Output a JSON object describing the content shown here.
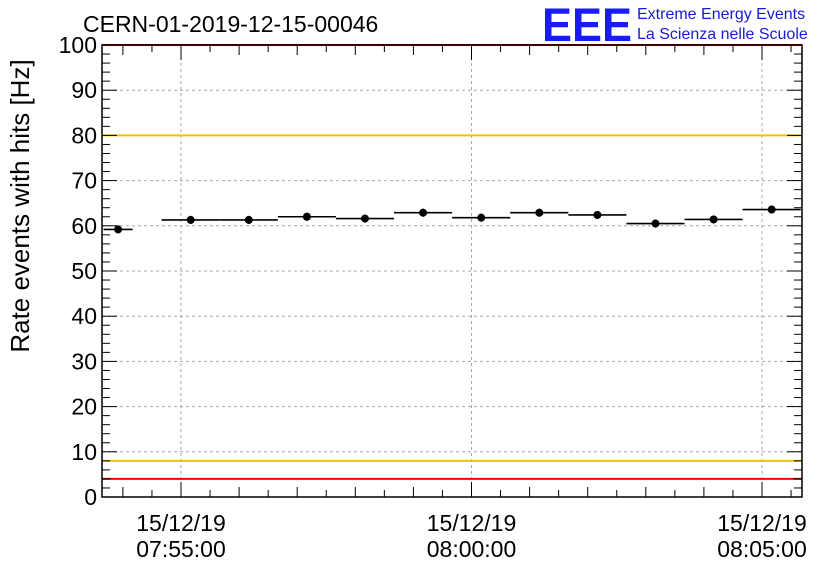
{
  "chart_data": {
    "type": "scatter",
    "title": "CERN-01-2019-12-15-00046",
    "ylabel": "Rate events with hits [Hz]",
    "xlabel": "",
    "ylim": [
      0,
      100
    ],
    "yticks": [
      "0",
      "10",
      "20",
      "30",
      "40",
      "50",
      "60",
      "70",
      "80",
      "90",
      "100"
    ],
    "xticks": [
      {
        "date": "15/12/19",
        "time": "07:55:00"
      },
      {
        "date": "15/12/19",
        "time": "08:00:00"
      },
      {
        "date": "15/12/19",
        "time": "08:05:00"
      }
    ],
    "grid": true,
    "reference_lines": [
      {
        "y": 100,
        "color": "#ff0000"
      },
      {
        "y": 80,
        "color": "#f2c200"
      },
      {
        "y": 8,
        "color": "#f2c200"
      },
      {
        "y": 4,
        "color": "#ff0000"
      }
    ],
    "series": [
      {
        "color": "#000000",
        "points": [
          {
            "x_start": "07:53:40",
            "x_end": "07:54:10",
            "y": 59.2
          },
          {
            "x_start": "07:54:40",
            "x_end": "07:55:40",
            "y": 61.3
          },
          {
            "x_start": "07:55:40",
            "x_end": "07:56:40",
            "y": 61.3
          },
          {
            "x_start": "07:56:40",
            "x_end": "07:57:40",
            "y": 62.0
          },
          {
            "x_start": "07:57:40",
            "x_end": "07:58:40",
            "y": 61.6
          },
          {
            "x_start": "07:58:40",
            "x_end": "07:59:40",
            "y": 62.9
          },
          {
            "x_start": "07:59:40",
            "x_end": "08:00:40",
            "y": 61.8
          },
          {
            "x_start": "08:00:40",
            "x_end": "08:01:40",
            "y": 62.9
          },
          {
            "x_start": "08:01:40",
            "x_end": "08:02:40",
            "y": 62.4
          },
          {
            "x_start": "08:02:40",
            "x_end": "08:03:40",
            "y": 60.5
          },
          {
            "x_start": "08:03:40",
            "x_end": "08:04:40",
            "y": 61.4
          },
          {
            "x_start": "08:04:40",
            "x_end": "08:05:40",
            "y": 63.6
          }
        ]
      }
    ]
  },
  "logo": {
    "mark": "EEE",
    "line1": "Extreme Energy Events",
    "line2": "La Scienza nelle Scuole"
  }
}
